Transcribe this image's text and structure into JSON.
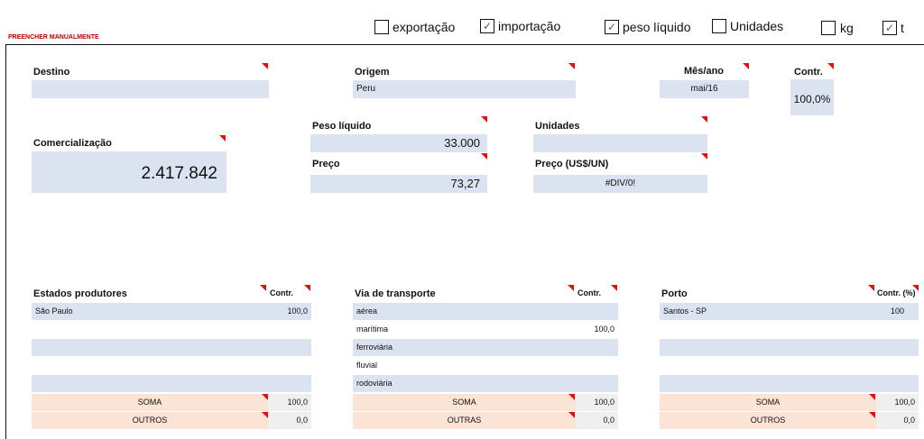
{
  "header_note": "PREENCHER MANUALMENTE",
  "checkboxes": [
    {
      "label": "exportação",
      "checked": false
    },
    {
      "label": "importação",
      "checked": true
    },
    {
      "label": "peso líquido",
      "checked": true
    },
    {
      "label": "Unidades",
      "checked": false
    },
    {
      "label": "kg",
      "checked": false
    },
    {
      "label": "t",
      "checked": true
    }
  ],
  "check_mark": "✓",
  "fields": {
    "destino": {
      "label": "Destino",
      "value": ""
    },
    "origem": {
      "label": "Origem",
      "value": "Peru"
    },
    "mes_ano": {
      "label": "Mês/ano",
      "value": "mai/16"
    },
    "contr": {
      "label": "Contr.",
      "value": "100,0%"
    },
    "comercializacao": {
      "label": "Comercialização",
      "value": "2.417.842"
    },
    "peso_liquido": {
      "label": "Peso líquido",
      "value": "33.000"
    },
    "preco": {
      "label": "Preço",
      "value": "73,27"
    },
    "unidades": {
      "label": "Unidades",
      "value": ""
    },
    "preco_usd": {
      "label": "Preço (US$/UN)",
      "value": "#DIV/0!"
    }
  },
  "estados": {
    "title": "Estados produtores",
    "contr_label": "Contr.",
    "rows": [
      {
        "name": "São Paulo",
        "value": "100,0"
      },
      {
        "name": "",
        "value": ""
      },
      {
        "name": "",
        "value": ""
      },
      {
        "name": "",
        "value": ""
      },
      {
        "name": "",
        "value": ""
      }
    ],
    "soma_label": "SOMA",
    "soma_value": "100,0",
    "outros_label": "OUTROS",
    "outros_value": "0,0"
  },
  "via": {
    "title": "Via de transporte",
    "contr_label": "Contr.",
    "rows": [
      {
        "name": "aérea",
        "value": ""
      },
      {
        "name": "marítima",
        "value": "100,0"
      },
      {
        "name": "ferroviária",
        "value": ""
      },
      {
        "name": "fluvial",
        "value": ""
      },
      {
        "name": "rodoviária",
        "value": ""
      }
    ],
    "soma_label": "SOMA",
    "soma_value": "100,0",
    "outros_label": "OUTRAS",
    "outros_value": "0,0"
  },
  "porto": {
    "title": "Porto",
    "contr_label": "Contr. (%)",
    "rows": [
      {
        "name": "Santos - SP",
        "value": "100"
      },
      {
        "name": "",
        "value": ""
      },
      {
        "name": "",
        "value": ""
      },
      {
        "name": "",
        "value": ""
      },
      {
        "name": "",
        "value": ""
      }
    ],
    "soma_label": "SOMA",
    "soma_value": "100,0",
    "outros_label": "OUTROS",
    "outros_value": "0,0"
  }
}
